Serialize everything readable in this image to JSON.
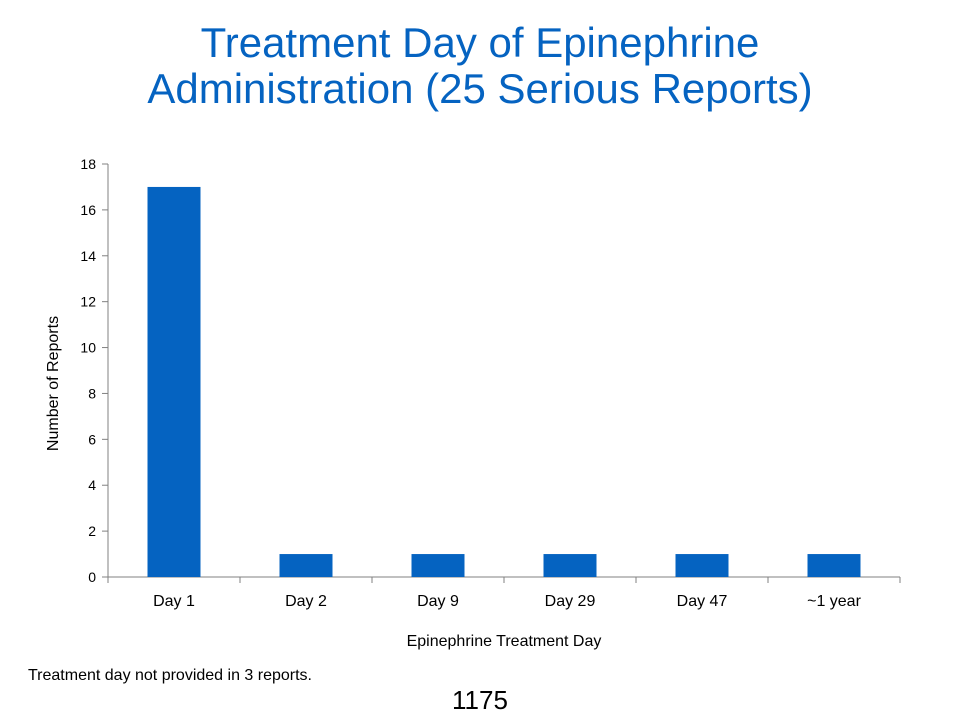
{
  "slide": {
    "title_line1": "Treatment Day of Epinephrine",
    "title_line2": "Administration (25 Serious Reports)",
    "footnote": "Treatment day not provided in 3 reports.",
    "slide_number": "1175"
  },
  "colors": {
    "title": "#0563C1",
    "bar": "#0563C1",
    "axis": "#808080"
  },
  "chart_data": {
    "type": "bar",
    "categories": [
      "Day 1",
      "Day 2",
      "Day 9",
      "Day 29",
      "Day 47",
      "~1 year"
    ],
    "values": [
      17,
      1,
      1,
      1,
      1,
      1
    ],
    "xlabel": "Epinephrine Treatment Day",
    "ylabel": "Number of Reports",
    "ylim": [
      0,
      18
    ],
    "yticks": [
      0,
      2,
      4,
      6,
      8,
      10,
      12,
      14,
      16,
      18
    ],
    "grid": false,
    "legend": "none"
  }
}
